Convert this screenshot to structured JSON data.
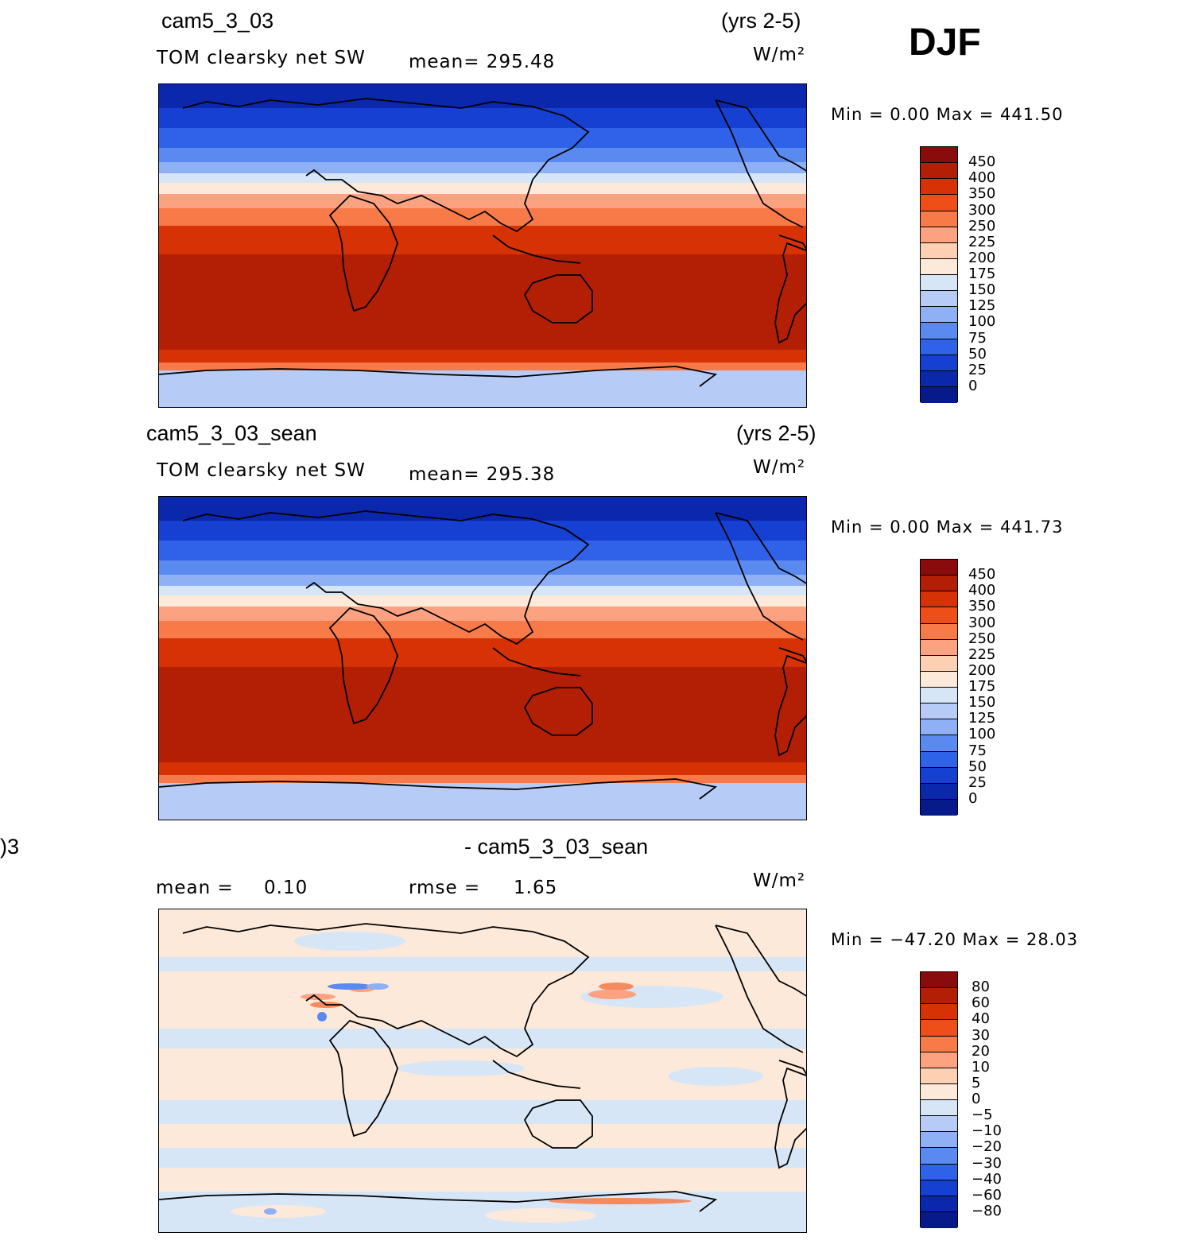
{
  "season": "DJF",
  "units": "W/m²",
  "panels": [
    {
      "case": "cam5_3_03",
      "years": "(yrs 2-5)",
      "variable": "TOM clearsky net SW",
      "stat": "mean= 295.48",
      "minmax": "Min =     0.00 Max  = 441.50",
      "colorbar": {
        "labels": [
          "450",
          "400",
          "350",
          "300",
          "250",
          "225",
          "200",
          "175",
          "150",
          "125",
          "100",
          "75",
          "50",
          "25",
          "0"
        ],
        "colors": [
          "#8a0b0b",
          "#b21f05",
          "#d63205",
          "#ee4f18",
          "#f77a48",
          "#fca281",
          "#fdd0b4",
          "#fde9d9",
          "#d7e6f7",
          "#b6cbf5",
          "#8fb0f5",
          "#5a89f0",
          "#2f62e8",
          "#1540d2",
          "#0b27ac",
          "#061a8a"
        ]
      }
    },
    {
      "case": "cam5_3_03_sean",
      "years": "(yrs 2-5)",
      "variable": "TOM clearsky net SW",
      "stat": "mean= 295.38",
      "minmax": "Min =     0.00 Max  = 441.73",
      "colorbar": {
        "labels": [
          "450",
          "400",
          "350",
          "300",
          "250",
          "225",
          "200",
          "175",
          "150",
          "125",
          "100",
          "75",
          "50",
          "25",
          "0"
        ],
        "colors": [
          "#8a0b0b",
          "#b21f05",
          "#d63205",
          "#ee4f18",
          "#f77a48",
          "#fca281",
          "#fdd0b4",
          "#fde9d9",
          "#d7e6f7",
          "#b6cbf5",
          "#8fb0f5",
          "#5a89f0",
          "#2f62e8",
          "#1540d2",
          "#0b27ac",
          "#061a8a"
        ]
      }
    },
    {
      "case_left": ")3",
      "case": "- cam5_3_03_sean",
      "mean_label": "mean =",
      "mean_value": "0.10",
      "rmse_label": "rmse =",
      "rmse_value": "1.65",
      "minmax": "Min = −47.20 Max  =   28.03",
      "colorbar": {
        "labels": [
          "80",
          "60",
          "40",
          "30",
          "20",
          "10",
          "5",
          "0",
          "−5",
          "−10",
          "−20",
          "−30",
          "−40",
          "−60",
          "−80"
        ],
        "colors": [
          "#8a0b0b",
          "#b21f05",
          "#d63205",
          "#ee4f18",
          "#f77a48",
          "#fca281",
          "#fdd0b4",
          "#fde9d9",
          "#d7e6f7",
          "#b6cbf5",
          "#8fb0f5",
          "#5a89f0",
          "#2f62e8",
          "#1540d2",
          "#0b27ac",
          "#061a8a"
        ]
      }
    }
  ]
}
